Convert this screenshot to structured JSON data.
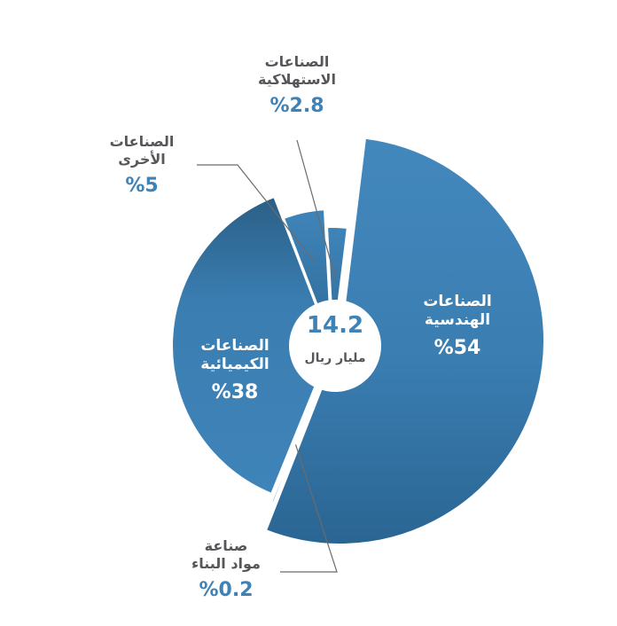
{
  "chart_data": {
    "type": "pie",
    "center": {
      "value": "14.2",
      "unit": "مليار ريال"
    },
    "slices": [
      {
        "name": "الصناعات الهندسية",
        "line1": "الصناعات",
        "line2": "الهندسية",
        "value": 54,
        "label": "%54",
        "color": "#3f83b8"
      },
      {
        "name": "صناعة مواد البناء",
        "line1": "صناعة",
        "line2": "مواد البناء",
        "value": 0.2,
        "label": "%0.2",
        "color": "#3a7cae"
      },
      {
        "name": "الصناعات الكيميائية",
        "line1": "الصناعات",
        "line2": "الكيميائية",
        "value": 38,
        "label": "%38",
        "color": "#3a7db1"
      },
      {
        "name": "الصناعات الأخرى",
        "line1": "الصناعات",
        "line2": "الأخرى",
        "value": 5,
        "label": "%5",
        "color": "#3b7fb4"
      },
      {
        "name": "الصناعات الاستهلاكية",
        "line1": "الصناعات",
        "line2": "الاستهلاكية",
        "value": 2.8,
        "label": "%2.8",
        "color": "#3b7fb4"
      }
    ]
  }
}
